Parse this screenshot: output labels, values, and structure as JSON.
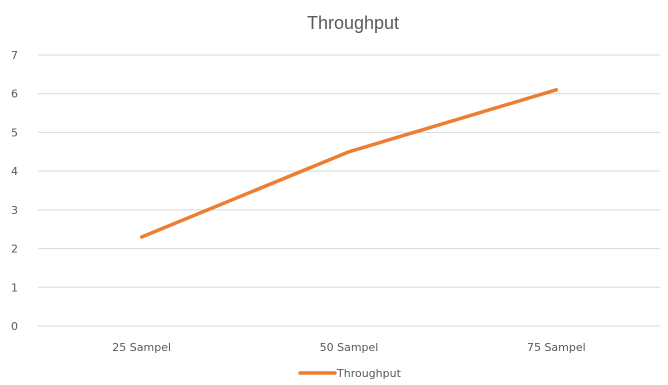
{
  "chart_data": {
    "type": "line",
    "title": "Throughput",
    "xlabel": "",
    "ylabel": "",
    "categories": [
      "25 Sampel",
      "50 Sampel",
      "75 Sampel"
    ],
    "series": [
      {
        "name": "Throughput",
        "values": [
          2.3,
          4.5,
          6.1
        ],
        "color": "#ED7D31"
      }
    ],
    "ylim": [
      0,
      7
    ],
    "yticks": [
      "0",
      "1",
      "2",
      "3",
      "4",
      "5",
      "6",
      "7"
    ],
    "grid": true,
    "legend": "bottom",
    "colors": {
      "grid": "#D9D9D9",
      "text": "#595959",
      "line": "#ED7D31"
    }
  }
}
